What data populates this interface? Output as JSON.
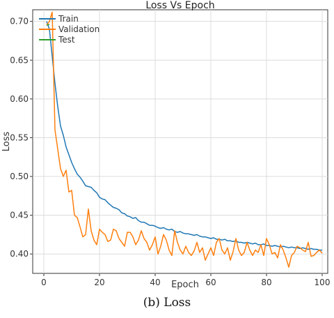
{
  "figure": {
    "caption": "(b) Loss"
  },
  "chart_data": {
    "type": "line",
    "title": "Loss Vs Epoch",
    "xlabel": "Epoch",
    "ylabel": "Loss",
    "xlim": [
      -4,
      102
    ],
    "ylim": [
      0.375,
      0.715
    ],
    "xticks": [
      0,
      20,
      40,
      60,
      80,
      100
    ],
    "yticks": [
      0.4,
      0.45,
      0.5,
      0.55,
      0.6,
      0.65,
      0.7
    ],
    "grid": true,
    "legend": "top-left",
    "series": [
      {
        "name": "Train",
        "color": "#1f77b4",
        "x": [
          1,
          2,
          3,
          4,
          5,
          6,
          7,
          8,
          9,
          10,
          11,
          12,
          13,
          14,
          15,
          16,
          17,
          18,
          19,
          20,
          21,
          22,
          23,
          24,
          25,
          26,
          27,
          28,
          29,
          30,
          31,
          32,
          33,
          34,
          35,
          36,
          37,
          38,
          39,
          40,
          41,
          42,
          43,
          44,
          45,
          46,
          47,
          48,
          49,
          50,
          51,
          52,
          53,
          54,
          55,
          56,
          57,
          58,
          59,
          60,
          61,
          62,
          63,
          64,
          65,
          66,
          67,
          68,
          69,
          70,
          71,
          72,
          73,
          74,
          75,
          76,
          77,
          78,
          79,
          80,
          81,
          82,
          83,
          84,
          85,
          86,
          87,
          88,
          89,
          90,
          91,
          92,
          93,
          94,
          95,
          96,
          97,
          98,
          99,
          100
        ],
        "y": [
          0.7,
          0.69,
          0.655,
          0.62,
          0.59,
          0.565,
          0.553,
          0.538,
          0.528,
          0.518,
          0.51,
          0.503,
          0.499,
          0.494,
          0.488,
          0.487,
          0.486,
          0.482,
          0.479,
          0.473,
          0.471,
          0.47,
          0.466,
          0.463,
          0.46,
          0.459,
          0.457,
          0.453,
          0.452,
          0.449,
          0.448,
          0.446,
          0.447,
          0.443,
          0.441,
          0.441,
          0.439,
          0.437,
          0.437,
          0.436,
          0.434,
          0.433,
          0.434,
          0.432,
          0.431,
          0.432,
          0.429,
          0.428,
          0.429,
          0.427,
          0.426,
          0.426,
          0.425,
          0.424,
          0.425,
          0.423,
          0.422,
          0.422,
          0.421,
          0.42,
          0.421,
          0.419,
          0.419,
          0.418,
          0.419,
          0.417,
          0.417,
          0.416,
          0.417,
          0.415,
          0.415,
          0.414,
          0.415,
          0.414,
          0.413,
          0.414,
          0.412,
          0.412,
          0.413,
          0.411,
          0.411,
          0.41,
          0.411,
          0.41,
          0.409,
          0.41,
          0.409,
          0.408,
          0.409,
          0.408,
          0.408,
          0.407,
          0.408,
          0.407,
          0.406,
          0.407,
          0.406,
          0.406,
          0.405,
          0.405
        ]
      },
      {
        "name": "Validation",
        "color": "#ff7f0e",
        "x": [
          1,
          2,
          3,
          4,
          5,
          6,
          7,
          8,
          9,
          10,
          11,
          12,
          13,
          14,
          15,
          16,
          17,
          18,
          19,
          20,
          21,
          22,
          23,
          24,
          25,
          26,
          27,
          28,
          29,
          30,
          31,
          32,
          33,
          34,
          35,
          36,
          37,
          38,
          39,
          40,
          41,
          42,
          43,
          44,
          45,
          46,
          47,
          48,
          49,
          50,
          51,
          52,
          53,
          54,
          55,
          56,
          57,
          58,
          59,
          60,
          61,
          62,
          63,
          64,
          65,
          66,
          67,
          68,
          69,
          70,
          71,
          72,
          73,
          74,
          75,
          76,
          77,
          78,
          79,
          80,
          81,
          82,
          83,
          84,
          85,
          86,
          87,
          88,
          89,
          90,
          91,
          92,
          93,
          94,
          95,
          96,
          97,
          98,
          99,
          100
        ],
        "y": [
          0.695,
          0.7,
          0.712,
          0.56,
          0.535,
          0.51,
          0.5,
          0.508,
          0.48,
          0.482,
          0.45,
          0.447,
          0.435,
          0.422,
          0.425,
          0.458,
          0.43,
          0.418,
          0.412,
          0.432,
          0.428,
          0.425,
          0.416,
          0.418,
          0.432,
          0.43,
          0.42,
          0.415,
          0.41,
          0.428,
          0.428,
          0.422,
          0.412,
          0.418,
          0.43,
          0.42,
          0.415,
          0.405,
          0.412,
          0.422,
          0.4,
          0.41,
          0.425,
          0.418,
          0.405,
          0.398,
          0.43,
          0.415,
          0.405,
          0.4,
          0.41,
          0.402,
          0.398,
          0.404,
          0.415,
          0.402,
          0.408,
          0.392,
          0.4,
          0.408,
          0.398,
          0.415,
          0.42,
          0.405,
          0.4,
          0.408,
          0.392,
          0.403,
          0.42,
          0.405,
          0.398,
          0.402,
          0.415,
          0.405,
          0.398,
          0.405,
          0.402,
          0.412,
          0.398,
          0.42,
          0.412,
          0.4,
          0.402,
          0.395,
          0.412,
          0.405,
          0.395,
          0.383,
          0.398,
          0.402,
          0.41,
          0.408,
          0.405,
          0.403,
          0.415,
          0.397,
          0.398,
          0.402,
          0.405,
          0.401
        ]
      },
      {
        "name": "Test",
        "color": "#2ca02c",
        "x": [
          1,
          2
        ],
        "y": [
          0.695,
          0.696
        ]
      }
    ]
  }
}
